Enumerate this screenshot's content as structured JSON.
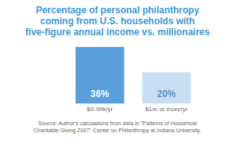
{
  "chart_data": {
    "type": "bar",
    "title": [
      "Percentage of personal philanthropy",
      "coming from U.S. households with",
      "five-figure annual income vs. millionaires"
    ],
    "categories": [
      "$0-99k/yr",
      "$1m or more/yr"
    ],
    "values": [
      36,
      20
    ],
    "value_labels": [
      "36%",
      "20%"
    ],
    "colors": [
      "#5a9fdc",
      "#c7def4"
    ],
    "data_labels": true,
    "tick_labels": "x",
    "grid": false,
    "annotations": [
      "Source: Author's calculations from data in \"Patterns of Household",
      "Charitable Giving 2007\" Center on Philanthropy at Indiana University."
    ]
  }
}
